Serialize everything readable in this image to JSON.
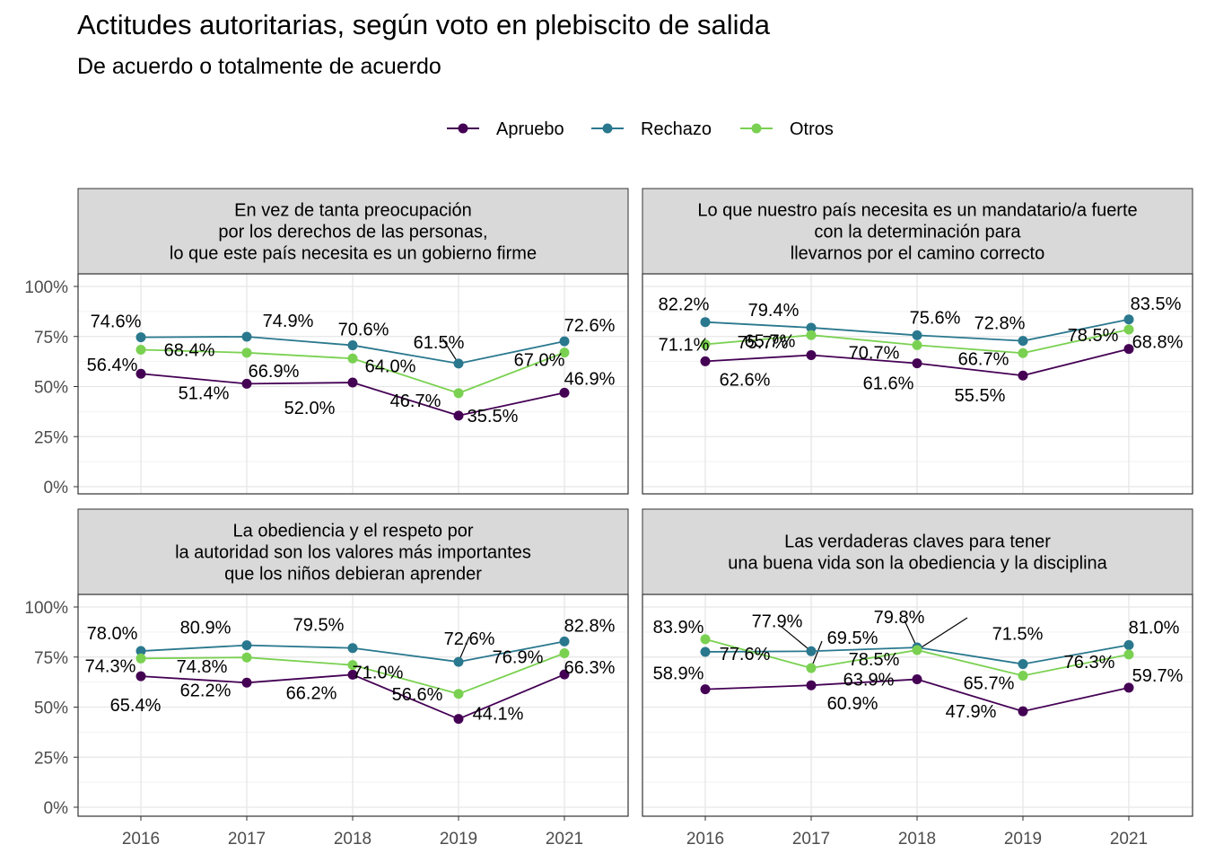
{
  "title": "Actitudes autoritarias, según voto en plebiscito de salida",
  "subtitle": "De acuerdo o totalmente de acuerdo",
  "colors": {
    "Apruebo": "#440154",
    "Rechazo": "#2a788e",
    "Otros": "#7ad151"
  },
  "chart_data": {
    "type": "line",
    "x": [
      "2016",
      "2017",
      "2018",
      "2019",
      "2021"
    ],
    "ylim": [
      0,
      100
    ],
    "y_ticks": [
      "0%",
      "25%",
      "50%",
      "75%",
      "100%"
    ],
    "legend": {
      "position": "top",
      "entries": [
        "Apruebo",
        "Rechazo",
        "Otros"
      ]
    },
    "grid": true,
    "panels": [
      {
        "title_lines": [
          "En vez de tanta preocupación",
          "por los derechos de las personas,",
          "lo que este país necesita es un gobierno firme"
        ],
        "series": [
          {
            "name": "Apruebo",
            "values": [
              56.4,
              51.4,
              52.0,
              35.5,
              46.9
            ]
          },
          {
            "name": "Rechazo",
            "values": [
              74.6,
              74.9,
              70.6,
              61.5,
              72.6
            ]
          },
          {
            "name": "Otros",
            "values": [
              68.4,
              66.9,
              64.0,
              46.7,
              67.0
            ]
          }
        ]
      },
      {
        "title_lines": [
          "Lo que nuestro país necesita es un mandatario/a fuerte",
          "con la determinación para",
          "llevarnos por el camino correcto"
        ],
        "series": [
          {
            "name": "Apruebo",
            "values": [
              62.6,
              65.7,
              61.6,
              55.5,
              68.8
            ]
          },
          {
            "name": "Rechazo",
            "values": [
              82.2,
              79.4,
              75.6,
              72.8,
              83.5
            ]
          },
          {
            "name": "Otros",
            "values": [
              71.1,
              75.7,
              70.7,
              66.7,
              78.5
            ]
          }
        ]
      },
      {
        "title_lines": [
          "La obediencia y el respeto por",
          "la autoridad son los valores más importantes",
          "que los niños debieran aprender"
        ],
        "series": [
          {
            "name": "Apruebo",
            "values": [
              65.4,
              62.2,
              66.2,
              44.1,
              66.3
            ]
          },
          {
            "name": "Rechazo",
            "values": [
              78.0,
              80.9,
              79.5,
              72.6,
              82.8
            ]
          },
          {
            "name": "Otros",
            "values": [
              74.3,
              74.8,
              71.0,
              56.6,
              76.9
            ]
          }
        ]
      },
      {
        "title_lines": [
          "Las verdaderas claves para tener",
          "una buena vida son la obediencia y la disciplina"
        ],
        "series": [
          {
            "name": "Apruebo",
            "values": [
              58.9,
              60.9,
              63.9,
              47.9,
              59.7
            ]
          },
          {
            "name": "Rechazo",
            "values": [
              77.6,
              77.9,
              79.8,
              71.5,
              81.0
            ]
          },
          {
            "name": "Otros",
            "values": [
              83.9,
              69.5,
              78.5,
              65.7,
              76.3
            ]
          }
        ]
      }
    ]
  }
}
